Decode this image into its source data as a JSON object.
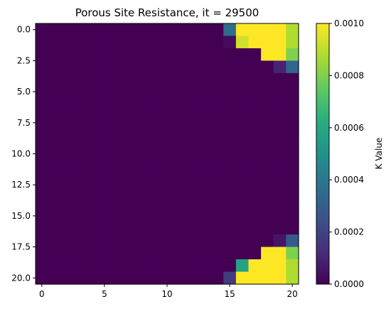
{
  "chart_data": {
    "type": "heatmap",
    "title": "Porous Site Resistance, it = 29500",
    "xlabel": "",
    "ylabel": "",
    "colorbar_label": "K Value",
    "nrows": 21,
    "ncols": 21,
    "x_ticks": [
      {
        "value": 0,
        "label": "0"
      },
      {
        "value": 5,
        "label": "5"
      },
      {
        "value": 10,
        "label": "10"
      },
      {
        "value": 15,
        "label": "15"
      },
      {
        "value": 20,
        "label": "20"
      }
    ],
    "y_ticks": [
      {
        "value": 0,
        "label": "0.0"
      },
      {
        "value": 2.5,
        "label": "2.5"
      },
      {
        "value": 5,
        "label": "5.0"
      },
      {
        "value": 7.5,
        "label": "7.5"
      },
      {
        "value": 10,
        "label": "10.0"
      },
      {
        "value": 12.5,
        "label": "12.5"
      },
      {
        "value": 15,
        "label": "15.0"
      },
      {
        "value": 17.5,
        "label": "17.5"
      },
      {
        "value": 20,
        "label": "20.0"
      }
    ],
    "colorbar_range": [
      0,
      0.001
    ],
    "colorbar_ticks": [
      {
        "value": 0.0,
        "label": "0.0000"
      },
      {
        "value": 0.0002,
        "label": "0.0002"
      },
      {
        "value": 0.0004,
        "label": "0.0004"
      },
      {
        "value": 0.0006,
        "label": "0.0006"
      },
      {
        "value": 0.0008,
        "label": "0.0008"
      },
      {
        "value": 0.001,
        "label": "0.0010"
      }
    ],
    "colormap": "viridis",
    "default_value": 0,
    "cells": [
      {
        "row": 0,
        "col": 15,
        "value": 0.00035
      },
      {
        "row": 0,
        "col": 16,
        "value": 0.001
      },
      {
        "row": 0,
        "col": 17,
        "value": 0.001
      },
      {
        "row": 0,
        "col": 18,
        "value": 0.001
      },
      {
        "row": 0,
        "col": 19,
        "value": 0.001
      },
      {
        "row": 0,
        "col": 20,
        "value": 0.00088
      },
      {
        "row": 1,
        "col": 15,
        "value": 3e-05
      },
      {
        "row": 1,
        "col": 16,
        "value": 0.00093
      },
      {
        "row": 1,
        "col": 17,
        "value": 0.001
      },
      {
        "row": 1,
        "col": 18,
        "value": 0.001
      },
      {
        "row": 1,
        "col": 19,
        "value": 0.001
      },
      {
        "row": 1,
        "col": 20,
        "value": 0.00088
      },
      {
        "row": 2,
        "col": 18,
        "value": 0.001
      },
      {
        "row": 2,
        "col": 19,
        "value": 0.001
      },
      {
        "row": 2,
        "col": 20,
        "value": 0.0008
      },
      {
        "row": 3,
        "col": 19,
        "value": 0.0001
      },
      {
        "row": 3,
        "col": 20,
        "value": 0.00033
      },
      {
        "row": 17,
        "col": 19,
        "value": 6e-05
      },
      {
        "row": 17,
        "col": 20,
        "value": 0.00028
      },
      {
        "row": 18,
        "col": 18,
        "value": 0.001
      },
      {
        "row": 18,
        "col": 19,
        "value": 0.001
      },
      {
        "row": 18,
        "col": 20,
        "value": 0.0008
      },
      {
        "row": 19,
        "col": 16,
        "value": 0.00058
      },
      {
        "row": 19,
        "col": 17,
        "value": 0.001
      },
      {
        "row": 19,
        "col": 18,
        "value": 0.001
      },
      {
        "row": 19,
        "col": 19,
        "value": 0.001
      },
      {
        "row": 19,
        "col": 20,
        "value": 0.00088
      },
      {
        "row": 20,
        "col": 15,
        "value": 0.00017
      },
      {
        "row": 20,
        "col": 16,
        "value": 0.001
      },
      {
        "row": 20,
        "col": 17,
        "value": 0.001
      },
      {
        "row": 20,
        "col": 18,
        "value": 0.001
      },
      {
        "row": 20,
        "col": 19,
        "value": 0.001
      },
      {
        "row": 20,
        "col": 20,
        "value": 0.00088
      }
    ]
  }
}
